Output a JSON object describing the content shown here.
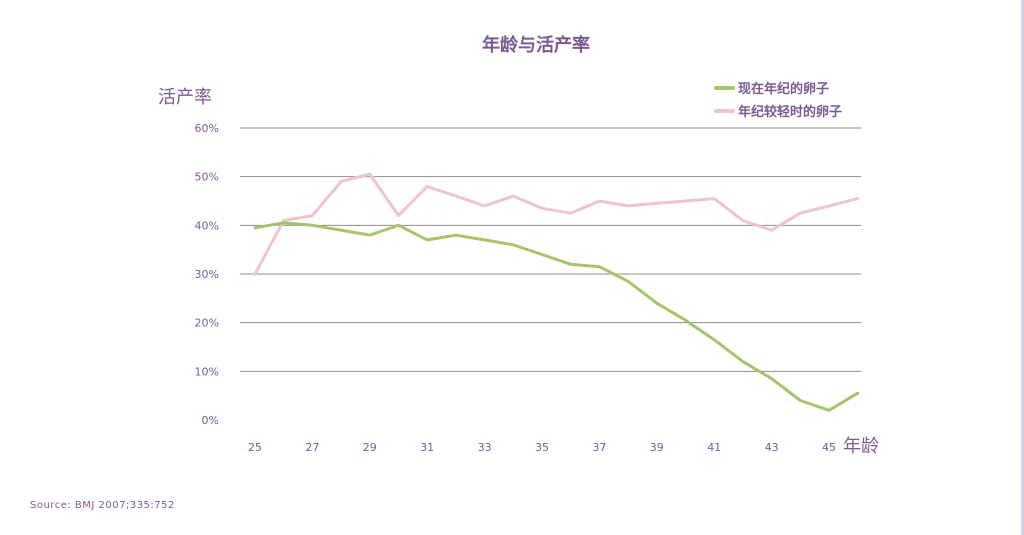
{
  "chart_data": {
    "type": "line",
    "title": "年龄与活产率",
    "ylabel": "活产率",
    "xlabel": "年龄",
    "ylim": [
      0,
      60
    ],
    "y_ticks": [
      0,
      10,
      20,
      30,
      40,
      50,
      60
    ],
    "y_tick_labels": [
      "0%",
      "10%",
      "20%",
      "30%",
      "40%",
      "50%",
      "60%"
    ],
    "x_ticks": [
      25,
      27,
      29,
      31,
      33,
      35,
      37,
      39,
      41,
      43,
      45
    ],
    "x_tick_labels": [
      "25",
      "27",
      "29",
      "31",
      "33",
      "35",
      "37",
      "39",
      "41",
      "43",
      "45"
    ],
    "xlim": [
      25,
      46
    ],
    "grid": true,
    "legend_position": "top-right",
    "series": [
      {
        "name": "现在年纪的卵子",
        "color": "#a5c56a",
        "x": [
          25,
          26,
          27,
          28,
          29,
          30,
          31,
          32,
          33,
          34,
          35,
          36,
          37,
          38,
          39,
          40,
          41,
          42,
          43,
          44,
          45,
          46
        ],
        "values": [
          39.5,
          40.5,
          40,
          39,
          38,
          40,
          37,
          38,
          37,
          36,
          34,
          32,
          31.5,
          28.5,
          24,
          20.5,
          16.5,
          12,
          8.5,
          4,
          2,
          5.5
        ]
      },
      {
        "name": "年纪较轻时的卵子",
        "color": "#f0c3d0",
        "x": [
          25,
          26,
          27,
          28,
          29,
          30,
          31,
          32,
          33,
          34,
          35,
          36,
          37,
          38,
          39,
          40,
          41,
          42,
          43,
          44,
          45,
          46
        ],
        "values": [
          30,
          41,
          42,
          49,
          50.5,
          42,
          48,
          46,
          44,
          46,
          43.5,
          42.5,
          45,
          44,
          44.5,
          45,
          45.5,
          41,
          39,
          42.5,
          44,
          45.5
        ]
      }
    ]
  },
  "source": "Source: BMJ 2007;335:752",
  "colors": {
    "title": "#7a5a94",
    "axis_text": "#7a5a94",
    "grid": "#8e8e8e",
    "background": "#ffffff"
  }
}
